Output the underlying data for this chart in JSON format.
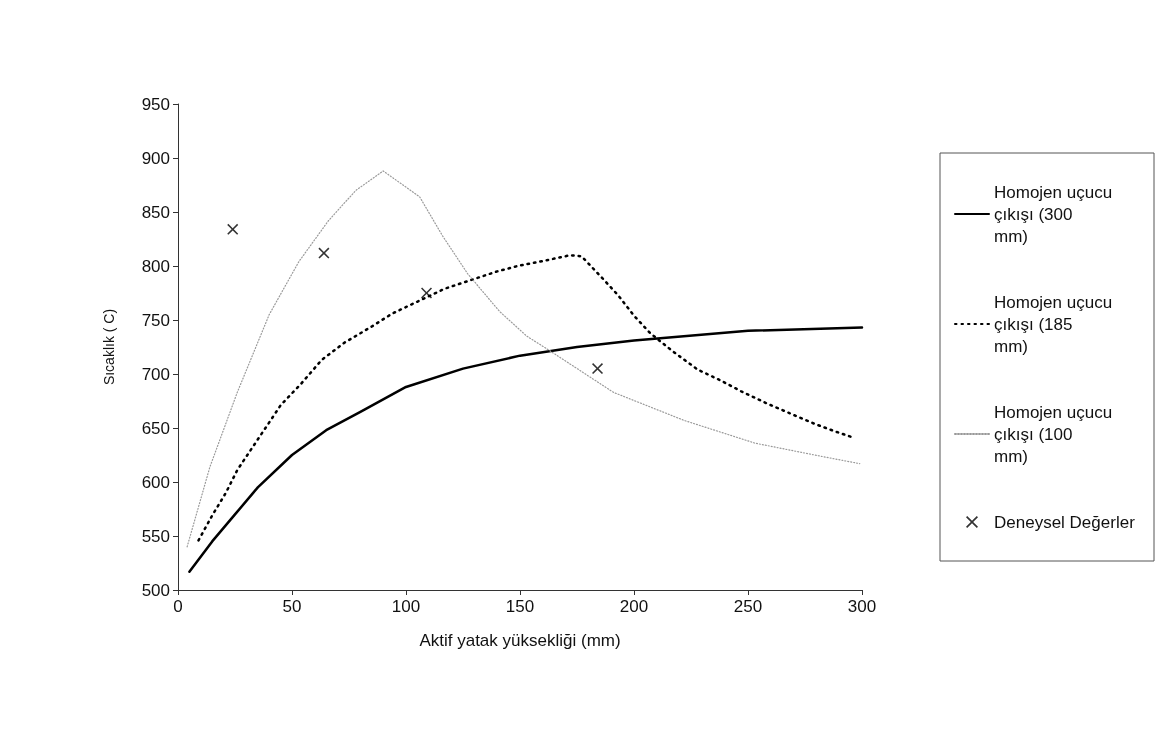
{
  "chart_data": {
    "type": "line",
    "xlabel": "Aktif yatak yüksekliği (mm)",
    "ylabel": "Sıcaklık ( C)",
    "xlim": [
      0,
      300
    ],
    "xticks": [
      0,
      50,
      100,
      150,
      200,
      250,
      300
    ],
    "ylim": [
      500,
      950
    ],
    "yticks": [
      500,
      550,
      600,
      650,
      700,
      750,
      800,
      850,
      900,
      950
    ],
    "grid": false,
    "legend": "right",
    "series": [
      {
        "name": "Homojen uçucu çıkışı (300 mm)",
        "color": "#000000",
        "line_style": "solid",
        "marker": "none",
        "x": [
          5,
          15,
          25,
          35,
          50,
          65,
          80,
          100,
          125,
          150,
          175,
          200,
          250,
          300
        ],
        "values": [
          517,
          545,
          570,
          595,
          625,
          648,
          665,
          688,
          705,
          717,
          725,
          731,
          740,
          743
        ]
      },
      {
        "name": "Homojen uçucu çıkışı (185 mm)",
        "color": "#000000",
        "line_style": "dotted",
        "marker": "none",
        "x": [
          9,
          15,
          21,
          26,
          32,
          39,
          45,
          54,
          63,
          73,
          85,
          94,
          117,
          140,
          149,
          161,
          172,
          177,
          186,
          193,
          200,
          207,
          217,
          228,
          238,
          247,
          258,
          269,
          279,
          288,
          295
        ],
        "values": [
          546,
          569,
          590,
          611,
          630,
          652,
          671,
          691,
          713,
          729,
          744,
          756,
          779,
          795,
          800,
          805,
          810,
          809,
          789,
          773,
          754,
          738,
          721,
          704,
          694,
          684,
          673,
          663,
          654,
          647,
          642
        ]
      },
      {
        "name": "Homojen uçucu çıkışı (100 mm)",
        "color": "#999999",
        "line_style": "dotted",
        "marker": "none",
        "x": [
          4,
          14,
          26,
          40,
          53,
          66,
          78,
          90,
          106,
          116,
          127,
          141,
          153,
          162,
          191,
          222,
          253,
          284,
          299
        ],
        "values": [
          540,
          614,
          683,
          755,
          804,
          842,
          870,
          888,
          864,
          828,
          793,
          758,
          735,
          723,
          683,
          657,
          636,
          623,
          617
        ]
      },
      {
        "name": "Deneysel Değerler",
        "type": "scatter",
        "color": "#000000",
        "marker": "cross",
        "x": [
          24,
          64,
          109,
          184
        ],
        "values": [
          834,
          812,
          775,
          705
        ]
      }
    ]
  }
}
